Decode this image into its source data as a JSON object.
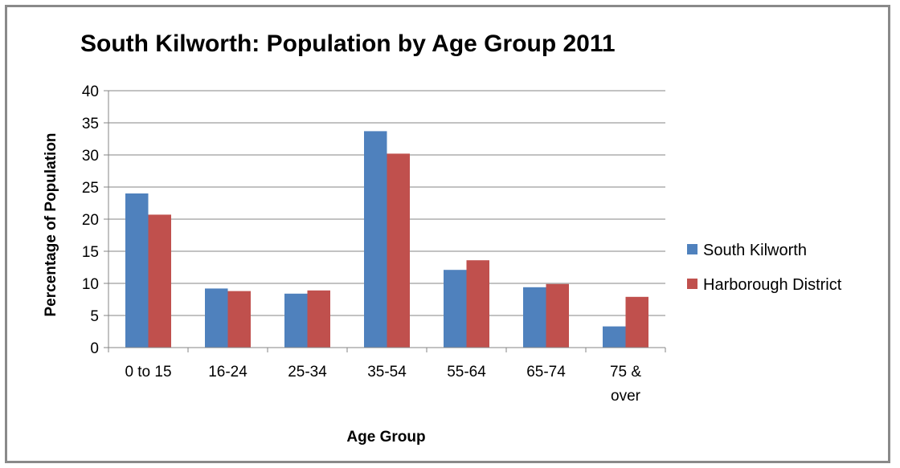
{
  "chart_data": {
    "type": "bar",
    "title": "South Kilworth: Population by Age Group 2011",
    "xlabel": "Age Group",
    "ylabel": "Percentage of Population",
    "categories": [
      "0 to 15",
      "16-24",
      "25-34",
      "35-54",
      "55-64",
      "65-74",
      "75 & over"
    ],
    "series": [
      {
        "name": "South Kilworth",
        "color": "#4f81bd",
        "values": [
          24.0,
          9.2,
          8.4,
          33.7,
          12.1,
          9.4,
          3.3
        ]
      },
      {
        "name": "Harborough District",
        "color": "#c0504d",
        "values": [
          20.7,
          8.8,
          8.9,
          30.2,
          13.6,
          9.9,
          7.9
        ]
      }
    ],
    "ylim": [
      0,
      40
    ],
    "yticks": [
      0,
      5,
      10,
      15,
      20,
      25,
      30,
      35,
      40
    ],
    "grid": true,
    "legend_position": "right"
  }
}
